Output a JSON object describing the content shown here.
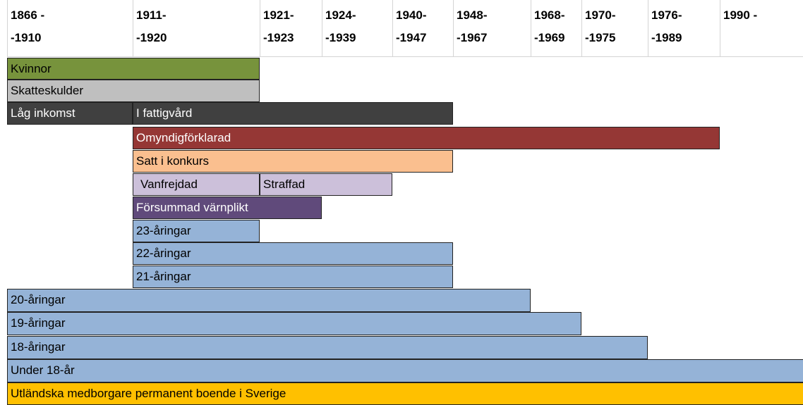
{
  "header": {
    "columns": [
      [
        "1866 -",
        "-1910"
      ],
      [
        "1911-",
        "-1920"
      ],
      [
        "1921-",
        "-1923"
      ],
      [
        "1924-",
        "-1939"
      ],
      [
        "1940-",
        "-1947"
      ],
      [
        "1948-",
        "-1967"
      ],
      [
        "1968-",
        "-1969"
      ],
      [
        "1970-",
        "-1975"
      ],
      [
        "1976-",
        "-1989"
      ],
      [
        "1990 -"
      ]
    ]
  },
  "bars": [
    {
      "label": "Kvinnor"
    },
    {
      "label": "Skatteskulder"
    },
    {
      "label": "Låg inkomst"
    },
    {
      "label": "I fattigvård"
    },
    {
      "label": "Omyndigförklarad"
    },
    {
      "label": "Satt i konkurs"
    },
    {
      "label": "Vanfrejdad"
    },
    {
      "label": "Straffad"
    },
    {
      "label": "Försummad värnplikt"
    },
    {
      "label": "23-åringar"
    },
    {
      "label": "22-åringar"
    },
    {
      "label": "21-åringar"
    },
    {
      "label": "20-åringar"
    },
    {
      "label": "19-åringar"
    },
    {
      "label": "18-åringar"
    },
    {
      "label": "Under 18-år"
    },
    {
      "label": "Utländska medborgare permanent boende i Sverige"
    }
  ]
}
